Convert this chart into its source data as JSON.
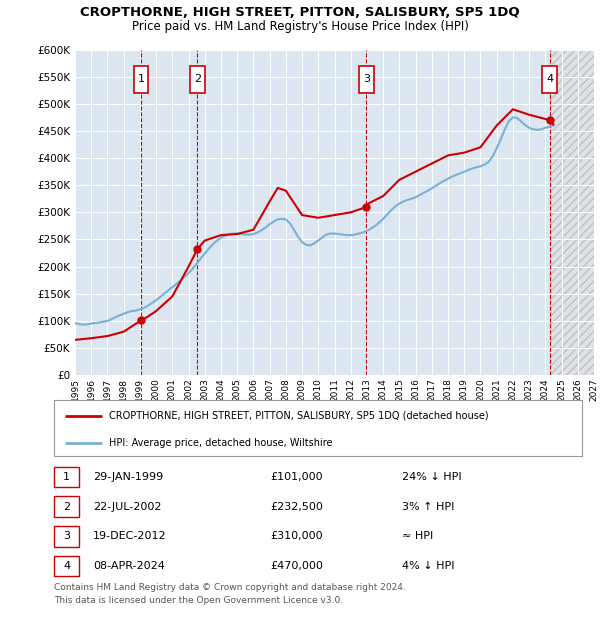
{
  "title": "CROPTHORNE, HIGH STREET, PITTON, SALISBURY, SP5 1DQ",
  "subtitle": "Price paid vs. HM Land Registry's House Price Index (HPI)",
  "ylim": [
    0,
    600000
  ],
  "yticks": [
    0,
    50000,
    100000,
    150000,
    200000,
    250000,
    300000,
    350000,
    400000,
    450000,
    500000,
    550000,
    600000
  ],
  "ytick_labels": [
    "£0",
    "£50K",
    "£100K",
    "£150K",
    "£200K",
    "£250K",
    "£300K",
    "£350K",
    "£400K",
    "£450K",
    "£500K",
    "£550K",
    "£600K"
  ],
  "xlim_start": 1995.0,
  "xlim_end": 2027.0,
  "xticks": [
    1995,
    1996,
    1997,
    1998,
    1999,
    2000,
    2001,
    2002,
    2003,
    2004,
    2005,
    2006,
    2007,
    2008,
    2009,
    2010,
    2011,
    2012,
    2013,
    2014,
    2015,
    2016,
    2017,
    2018,
    2019,
    2020,
    2021,
    2022,
    2023,
    2024,
    2025,
    2026,
    2027
  ],
  "background_color": "#ffffff",
  "plot_bg_color": "#dce6f1",
  "grid_color": "#ffffff",
  "hpi_line_color": "#7bafd4",
  "price_line_color": "#cc0000",
  "sale_marker_color": "#cc0000",
  "dashed_line_color": "#cc0000",
  "transactions": [
    {
      "num": 1,
      "date": "29-JAN-1999",
      "year": 1999.08,
      "price": 101000,
      "label": "24% ↓ HPI"
    },
    {
      "num": 2,
      "date": "22-JUL-2002",
      "year": 2002.55,
      "price": 232500,
      "label": "3% ↑ HPI"
    },
    {
      "num": 3,
      "date": "19-DEC-2012",
      "year": 2012.97,
      "price": 310000,
      "label": "≈ HPI"
    },
    {
      "num": 4,
      "date": "08-APR-2024",
      "year": 2024.27,
      "price": 470000,
      "label": "4% ↓ HPI"
    }
  ],
  "legend_line1": "CROPTHORNE, HIGH STREET, PITTON, SALISBURY, SP5 1DQ (detached house)",
  "legend_line2": "HPI: Average price, detached house, Wiltshire",
  "footer1": "Contains HM Land Registry data © Crown copyright and database right 2024.",
  "footer2": "This data is licensed under the Open Government Licence v3.0.",
  "hpi_data_x": [
    1995.0,
    1995.25,
    1995.5,
    1995.75,
    1996.0,
    1996.25,
    1996.5,
    1996.75,
    1997.0,
    1997.25,
    1997.5,
    1997.75,
    1998.0,
    1998.25,
    1998.5,
    1998.75,
    1999.0,
    1999.25,
    1999.5,
    1999.75,
    2000.0,
    2000.25,
    2000.5,
    2000.75,
    2001.0,
    2001.25,
    2001.5,
    2001.75,
    2002.0,
    2002.25,
    2002.5,
    2002.75,
    2003.0,
    2003.25,
    2003.5,
    2003.75,
    2004.0,
    2004.25,
    2004.5,
    2004.75,
    2005.0,
    2005.25,
    2005.5,
    2005.75,
    2006.0,
    2006.25,
    2006.5,
    2006.75,
    2007.0,
    2007.25,
    2007.5,
    2007.75,
    2008.0,
    2008.25,
    2008.5,
    2008.75,
    2009.0,
    2009.25,
    2009.5,
    2009.75,
    2010.0,
    2010.25,
    2010.5,
    2010.75,
    2011.0,
    2011.25,
    2011.5,
    2011.75,
    2012.0,
    2012.25,
    2012.5,
    2012.75,
    2013.0,
    2013.25,
    2013.5,
    2013.75,
    2014.0,
    2014.25,
    2014.5,
    2014.75,
    2015.0,
    2015.25,
    2015.5,
    2015.75,
    2016.0,
    2016.25,
    2016.5,
    2016.75,
    2017.0,
    2017.25,
    2017.5,
    2017.75,
    2018.0,
    2018.25,
    2018.5,
    2018.75,
    2019.0,
    2019.25,
    2019.5,
    2019.75,
    2020.0,
    2020.25,
    2020.5,
    2020.75,
    2021.0,
    2021.25,
    2021.5,
    2021.75,
    2022.0,
    2022.25,
    2022.5,
    2022.75,
    2023.0,
    2023.25,
    2023.5,
    2023.75,
    2024.0,
    2024.5
  ],
  "hpi_data_y": [
    96000,
    94000,
    93000,
    93500,
    95000,
    96000,
    97000,
    98500,
    100000,
    103000,
    107000,
    110000,
    113000,
    116000,
    118000,
    119000,
    121000,
    124000,
    128000,
    133000,
    138000,
    144000,
    150000,
    156000,
    162000,
    168000,
    174000,
    181000,
    188000,
    196000,
    205000,
    215000,
    224000,
    233000,
    241000,
    248000,
    253000,
    257000,
    260000,
    261000,
    261000,
    260000,
    259000,
    259000,
    260000,
    263000,
    267000,
    272000,
    278000,
    283000,
    287000,
    288000,
    287000,
    280000,
    268000,
    255000,
    245000,
    240000,
    239000,
    243000,
    248000,
    254000,
    259000,
    261000,
    261000,
    260000,
    259000,
    258000,
    258000,
    259000,
    261000,
    263000,
    266000,
    270000,
    275000,
    281000,
    288000,
    296000,
    304000,
    311000,
    316000,
    320000,
    323000,
    325000,
    328000,
    332000,
    336000,
    340000,
    344000,
    349000,
    354000,
    358000,
    362000,
    366000,
    369000,
    372000,
    375000,
    378000,
    381000,
    383000,
    385000,
    388000,
    393000,
    403000,
    418000,
    435000,
    453000,
    468000,
    475000,
    474000,
    468000,
    461000,
    456000,
    453000,
    452000,
    453000,
    456000,
    460000
  ],
  "price_line_x": [
    1995.0,
    1996.0,
    1997.0,
    1998.0,
    1999.08,
    1999.5,
    2000.0,
    2001.0,
    2002.0,
    2002.55,
    2003.0,
    2004.0,
    2005.0,
    2006.0,
    2007.0,
    2007.5,
    2008.0,
    2009.0,
    2010.0,
    2011.0,
    2012.0,
    2012.97,
    2013.0,
    2014.0,
    2015.0,
    2016.0,
    2017.0,
    2018.0,
    2019.0,
    2020.0,
    2021.0,
    2022.0,
    2023.0,
    2024.27,
    2024.5
  ],
  "price_line_y": [
    65000,
    68000,
    72000,
    80000,
    101000,
    108000,
    118000,
    145000,
    200000,
    232500,
    248000,
    258000,
    260000,
    268000,
    320000,
    345000,
    340000,
    295000,
    290000,
    295000,
    300000,
    310000,
    315000,
    330000,
    360000,
    375000,
    390000,
    405000,
    410000,
    420000,
    460000,
    490000,
    480000,
    470000,
    462000
  ]
}
